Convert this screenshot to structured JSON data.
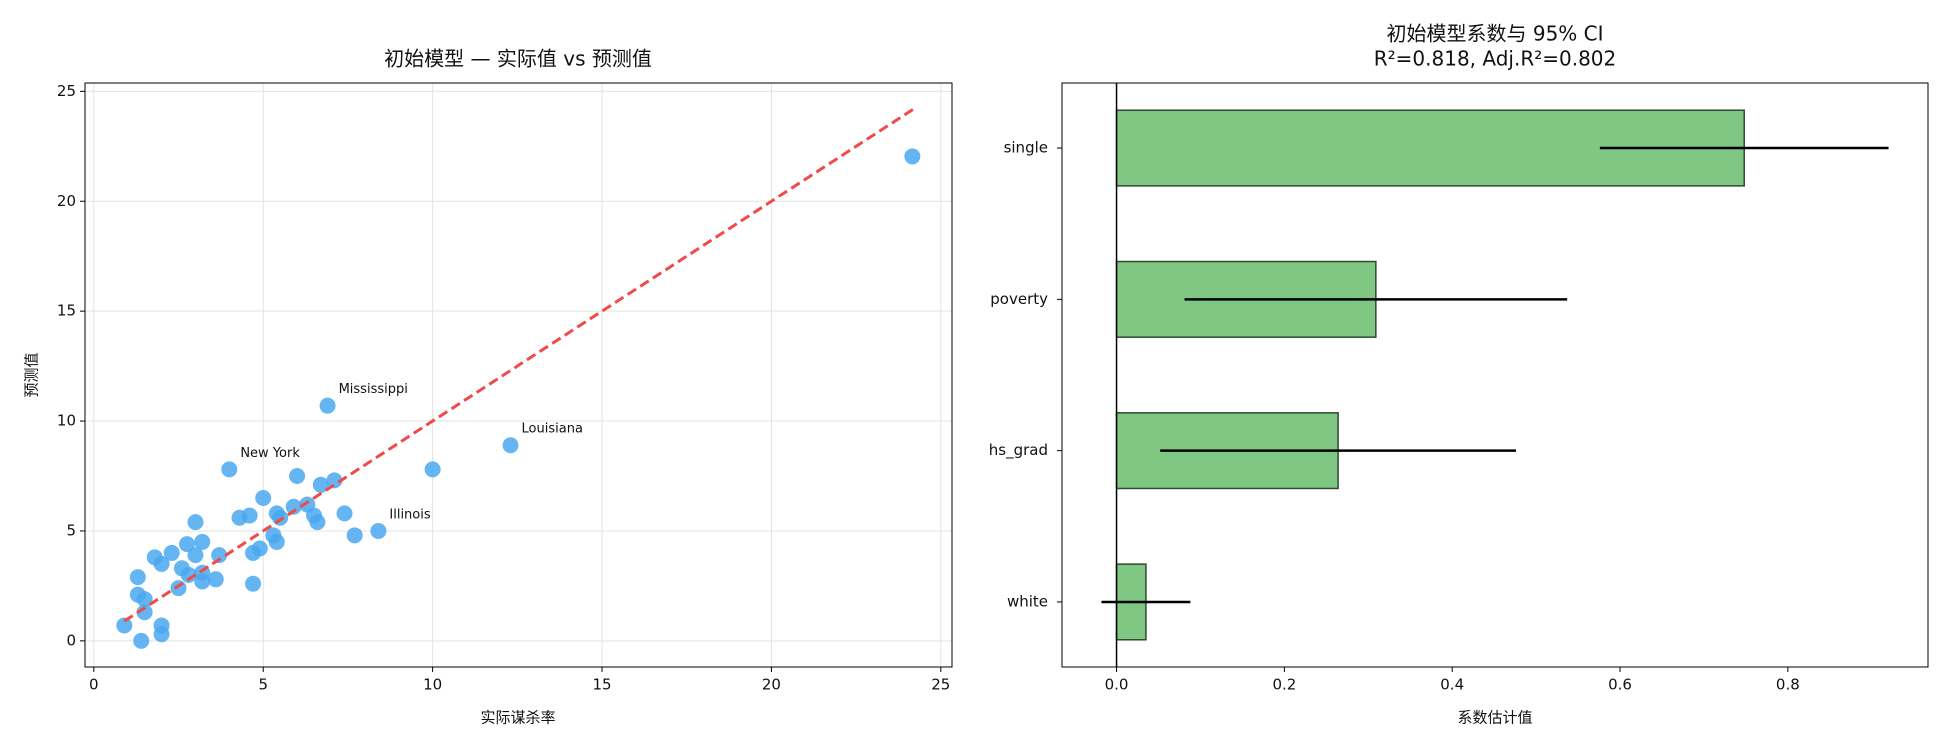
{
  "chart_data": [
    {
      "type": "scatter",
      "title": "初始模型 — 实际值 vs 预测值",
      "x_label": "实际谋杀率",
      "y_label": "预测值",
      "color": "#4aa8f0",
      "x": [
        24.16,
        6.9,
        12.3,
        4.0,
        10.0,
        6.0,
        7.1,
        6.7,
        5.0,
        4.3,
        4.6,
        3.0,
        5.9,
        6.3,
        5.4,
        5.5,
        6.5,
        6.6,
        7.4,
        8.4,
        7.7,
        5.3,
        5.4,
        3.2,
        2.75,
        4.9,
        4.7,
        3.7,
        3.0,
        2.3,
        1.8,
        2.0,
        2.6,
        3.2,
        2.8,
        1.3,
        3.6,
        3.2,
        4.7,
        2.5,
        1.3,
        1.5,
        1.5,
        0.9,
        2.0,
        2.0,
        1.4
      ],
      "values": [
        22.04,
        10.7,
        8.9,
        7.8,
        7.8,
        7.5,
        7.3,
        7.1,
        6.5,
        5.6,
        5.7,
        5.4,
        6.1,
        6.2,
        5.8,
        5.6,
        5.7,
        5.4,
        5.8,
        5.0,
        4.8,
        4.8,
        4.5,
        4.5,
        4.4,
        4.2,
        4.0,
        3.9,
        3.9,
        4.0,
        3.8,
        3.5,
        3.3,
        3.1,
        3.0,
        2.9,
        2.8,
        2.7,
        2.6,
        2.4,
        2.1,
        1.9,
        1.3,
        0.7,
        0.7,
        0.3,
        0.0
      ],
      "xlim": [
        -0.26,
        25.33
      ],
      "ylim": [
        -1.19,
        25.38
      ],
      "xticks": [
        0,
        5,
        10,
        15,
        20,
        25
      ],
      "yticks": [
        0,
        5,
        10,
        15,
        20,
        25
      ],
      "grid": true,
      "annotations": [
        {
          "text": "Mississippi",
          "x": 6.9,
          "y": 10.7
        },
        {
          "text": "Louisiana",
          "x": 12.3,
          "y": 8.9
        },
        {
          "text": "New York",
          "x": 4.0,
          "y": 7.8
        },
        {
          "text": "Illinois",
          "x": 8.4,
          "y": 5.0
        }
      ],
      "reference_line": {
        "x": [
          0.9,
          24.2
        ],
        "y": [
          0.9,
          24.2
        ],
        "color": "#f04a4a",
        "style": "dashed"
      }
    },
    {
      "type": "bar",
      "orientation": "horizontal",
      "title": "初始模型系数与 95% CI",
      "subtitle": "R²=0.818, Adj.R²=0.802",
      "x_label": "系数估计值",
      "categories": [
        "single",
        "poverty",
        "hs_grad",
        "white"
      ],
      "values": [
        0.748,
        0.309,
        0.264,
        0.035
      ],
      "errors": [
        0.172,
        0.228,
        0.212,
        0.053
      ],
      "color": "#81c784",
      "edge_color": "#2e4a30",
      "xlim": [
        -0.065,
        0.967
      ],
      "xticks": [
        {
          "value": 0,
          "label": "0.0"
        },
        0.2,
        0.4,
        0.6,
        0.8
      ],
      "grid": false,
      "zero_line": 0
    }
  ]
}
